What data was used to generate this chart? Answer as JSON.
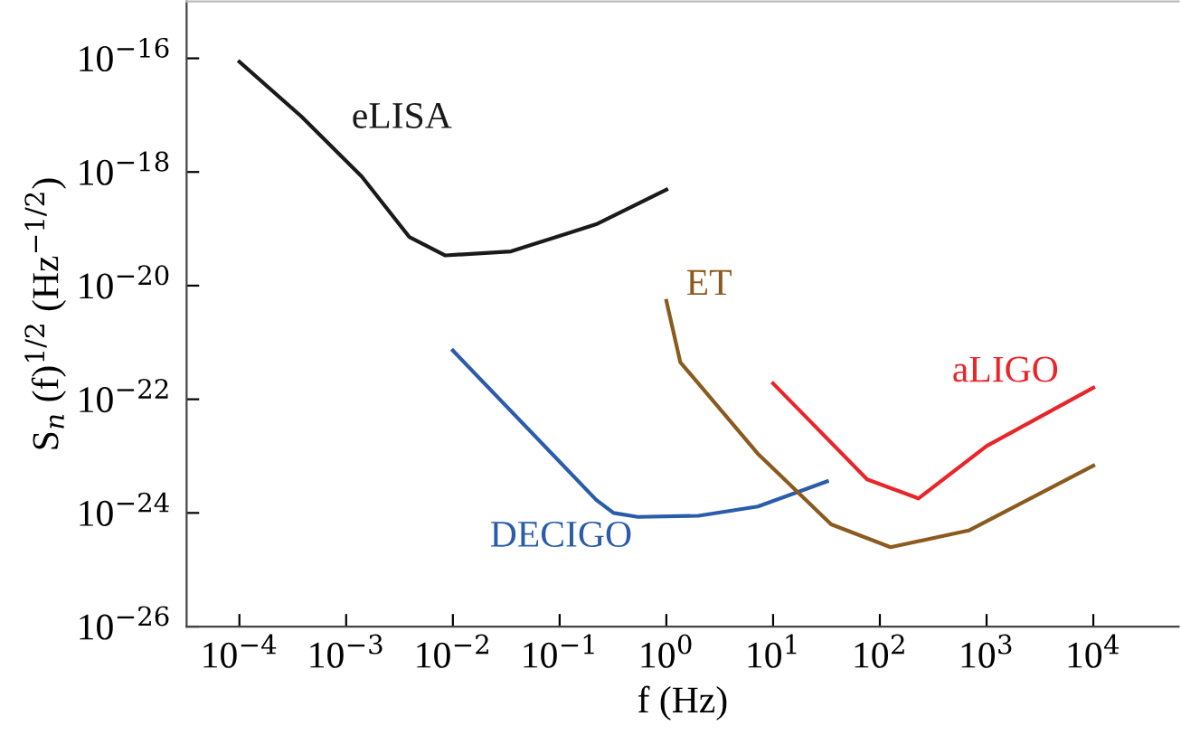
{
  "chart_data": {
    "type": "line",
    "xlabel": "f (Hz)",
    "ylabel": "S$_{n}$ (f)$^{1/2}$ (Hz$^{−1/2}$)",
    "log": "xy",
    "grid": false,
    "legend": false,
    "marker": "none",
    "line_style": "solid",
    "xlim": [
      3.2e-05,
      63000.0
    ],
    "ylim": [
      1e-26,
      1e-15
    ],
    "xticks": [
      {
        "value": 0.0001,
        "label": "10$^{−4}$"
      },
      {
        "value": 0.001,
        "label": "10$^{−3}$"
      },
      {
        "value": 0.01,
        "label": "10$^{−2}$"
      },
      {
        "value": 0.1,
        "label": "10$^{−1}$"
      },
      {
        "value": 1,
        "label": "10$^{0}$"
      },
      {
        "value": 10,
        "label": "10$^{1}$"
      },
      {
        "value": 100,
        "label": "10$^{2}$"
      },
      {
        "value": 1000,
        "label": "10$^{3}$"
      },
      {
        "value": 10000,
        "label": "10$^{4}$"
      }
    ],
    "yticks": [
      {
        "value": 1e-26,
        "label": "10$^{−26}$"
      },
      {
        "value": 1e-24,
        "label": "10$^{−24}$"
      },
      {
        "value": 1e-22,
        "label": "10$^{−22}$"
      },
      {
        "value": 1e-20,
        "label": "10$^{−20}$"
      },
      {
        "value": 1e-18,
        "label": "10$^{−18}$"
      },
      {
        "value": 1e-16,
        "label": "10$^{−16}$"
      }
    ],
    "series": [
      {
        "name": "eLISA",
        "color": "#1a1a1a",
        "x": [
          0.0001,
          0.00038,
          0.0014,
          0.0039,
          0.0085,
          0.035,
          0.22,
          1
        ],
        "values": [
          8.7e-17,
          9.5e-18,
          8.3e-19,
          7.2e-20,
          3.4e-20,
          4e-20,
          1.2e-19,
          4.9e-19
        ]
      },
      {
        "name": "DECIGO",
        "color": "#2a5caa",
        "x": [
          0.01,
          0.22,
          0.32,
          0.54,
          2.0,
          7.2,
          32
        ],
        "values": [
          7.2e-22,
          1.7e-24,
          1e-24,
          8.5e-25,
          8.9e-25,
          1.3e-24,
          3.6e-24
        ]
      },
      {
        "name": "ET",
        "color": "#8b5a1e",
        "x": [
          1,
          1.35,
          7.2,
          35,
          126,
          680,
          10000
        ],
        "values": [
          5.4e-21,
          4.5e-22,
          1.1e-23,
          6.3e-25,
          2.5e-25,
          4.9e-25,
          6.8e-24
        ]
      },
      {
        "name": "aLIGO",
        "color": "#e8262a",
        "x": [
          10,
          76,
          230,
          1000,
          10000
        ],
        "values": [
          1.9e-22,
          3.9e-24,
          1.8e-24,
          1.5e-23,
          1.6e-22
        ]
      }
    ]
  }
}
